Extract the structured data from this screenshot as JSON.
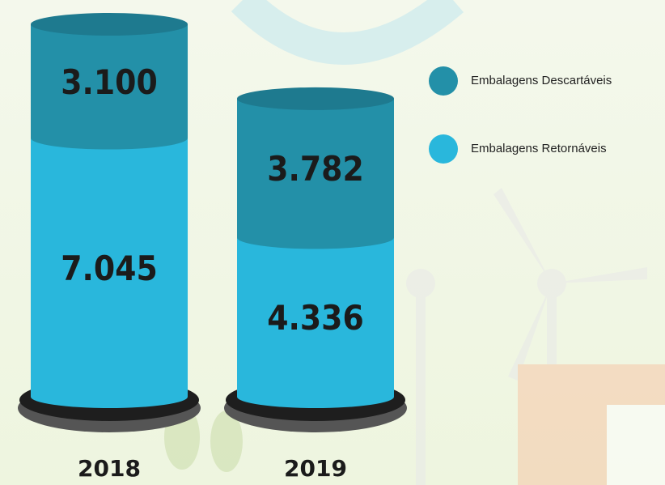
{
  "chart_data": {
    "type": "stacked-cylinder",
    "categories": [
      "2018",
      "2019"
    ],
    "series": [
      {
        "name": "Embalagens Descartáveis",
        "color": "#2390a8",
        "values": [
          3100,
          3782
        ],
        "value_labels": [
          "3.100",
          "3.782"
        ]
      },
      {
        "name": "Embalagens Retornáveis",
        "color": "#29b7dc",
        "values": [
          7045,
          4336
        ],
        "value_labels": [
          "7.045",
          "4.336"
        ]
      }
    ]
  }
}
